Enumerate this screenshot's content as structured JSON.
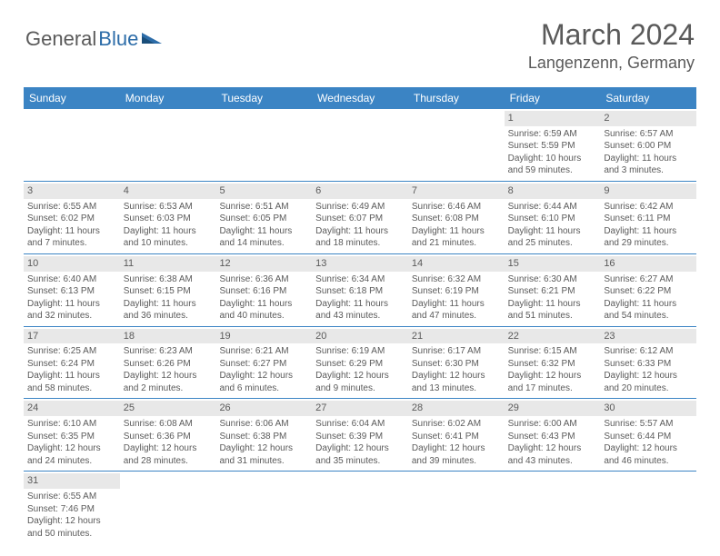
{
  "logo": {
    "text_gray": "General",
    "text_blue": "Blue"
  },
  "title": "March 2024",
  "location": "Langenzenn, Germany",
  "colors": {
    "header_bg": "#3b84c4",
    "header_text": "#ffffff",
    "daynum_bg": "#e8e8e8",
    "text": "#5a5a5a",
    "row_border": "#3b84c4"
  },
  "day_headers": [
    "Sunday",
    "Monday",
    "Tuesday",
    "Wednesday",
    "Thursday",
    "Friday",
    "Saturday"
  ],
  "weeks": [
    [
      null,
      null,
      null,
      null,
      null,
      {
        "n": "1",
        "sunrise": "Sunrise: 6:59 AM",
        "sunset": "Sunset: 5:59 PM",
        "day1": "Daylight: 10 hours",
        "day2": "and 59 minutes."
      },
      {
        "n": "2",
        "sunrise": "Sunrise: 6:57 AM",
        "sunset": "Sunset: 6:00 PM",
        "day1": "Daylight: 11 hours",
        "day2": "and 3 minutes."
      }
    ],
    [
      {
        "n": "3",
        "sunrise": "Sunrise: 6:55 AM",
        "sunset": "Sunset: 6:02 PM",
        "day1": "Daylight: 11 hours",
        "day2": "and 7 minutes."
      },
      {
        "n": "4",
        "sunrise": "Sunrise: 6:53 AM",
        "sunset": "Sunset: 6:03 PM",
        "day1": "Daylight: 11 hours",
        "day2": "and 10 minutes."
      },
      {
        "n": "5",
        "sunrise": "Sunrise: 6:51 AM",
        "sunset": "Sunset: 6:05 PM",
        "day1": "Daylight: 11 hours",
        "day2": "and 14 minutes."
      },
      {
        "n": "6",
        "sunrise": "Sunrise: 6:49 AM",
        "sunset": "Sunset: 6:07 PM",
        "day1": "Daylight: 11 hours",
        "day2": "and 18 minutes."
      },
      {
        "n": "7",
        "sunrise": "Sunrise: 6:46 AM",
        "sunset": "Sunset: 6:08 PM",
        "day1": "Daylight: 11 hours",
        "day2": "and 21 minutes."
      },
      {
        "n": "8",
        "sunrise": "Sunrise: 6:44 AM",
        "sunset": "Sunset: 6:10 PM",
        "day1": "Daylight: 11 hours",
        "day2": "and 25 minutes."
      },
      {
        "n": "9",
        "sunrise": "Sunrise: 6:42 AM",
        "sunset": "Sunset: 6:11 PM",
        "day1": "Daylight: 11 hours",
        "day2": "and 29 minutes."
      }
    ],
    [
      {
        "n": "10",
        "sunrise": "Sunrise: 6:40 AM",
        "sunset": "Sunset: 6:13 PM",
        "day1": "Daylight: 11 hours",
        "day2": "and 32 minutes."
      },
      {
        "n": "11",
        "sunrise": "Sunrise: 6:38 AM",
        "sunset": "Sunset: 6:15 PM",
        "day1": "Daylight: 11 hours",
        "day2": "and 36 minutes."
      },
      {
        "n": "12",
        "sunrise": "Sunrise: 6:36 AM",
        "sunset": "Sunset: 6:16 PM",
        "day1": "Daylight: 11 hours",
        "day2": "and 40 minutes."
      },
      {
        "n": "13",
        "sunrise": "Sunrise: 6:34 AM",
        "sunset": "Sunset: 6:18 PM",
        "day1": "Daylight: 11 hours",
        "day2": "and 43 minutes."
      },
      {
        "n": "14",
        "sunrise": "Sunrise: 6:32 AM",
        "sunset": "Sunset: 6:19 PM",
        "day1": "Daylight: 11 hours",
        "day2": "and 47 minutes."
      },
      {
        "n": "15",
        "sunrise": "Sunrise: 6:30 AM",
        "sunset": "Sunset: 6:21 PM",
        "day1": "Daylight: 11 hours",
        "day2": "and 51 minutes."
      },
      {
        "n": "16",
        "sunrise": "Sunrise: 6:27 AM",
        "sunset": "Sunset: 6:22 PM",
        "day1": "Daylight: 11 hours",
        "day2": "and 54 minutes."
      }
    ],
    [
      {
        "n": "17",
        "sunrise": "Sunrise: 6:25 AM",
        "sunset": "Sunset: 6:24 PM",
        "day1": "Daylight: 11 hours",
        "day2": "and 58 minutes."
      },
      {
        "n": "18",
        "sunrise": "Sunrise: 6:23 AM",
        "sunset": "Sunset: 6:26 PM",
        "day1": "Daylight: 12 hours",
        "day2": "and 2 minutes."
      },
      {
        "n": "19",
        "sunrise": "Sunrise: 6:21 AM",
        "sunset": "Sunset: 6:27 PM",
        "day1": "Daylight: 12 hours",
        "day2": "and 6 minutes."
      },
      {
        "n": "20",
        "sunrise": "Sunrise: 6:19 AM",
        "sunset": "Sunset: 6:29 PM",
        "day1": "Daylight: 12 hours",
        "day2": "and 9 minutes."
      },
      {
        "n": "21",
        "sunrise": "Sunrise: 6:17 AM",
        "sunset": "Sunset: 6:30 PM",
        "day1": "Daylight: 12 hours",
        "day2": "and 13 minutes."
      },
      {
        "n": "22",
        "sunrise": "Sunrise: 6:15 AM",
        "sunset": "Sunset: 6:32 PM",
        "day1": "Daylight: 12 hours",
        "day2": "and 17 minutes."
      },
      {
        "n": "23",
        "sunrise": "Sunrise: 6:12 AM",
        "sunset": "Sunset: 6:33 PM",
        "day1": "Daylight: 12 hours",
        "day2": "and 20 minutes."
      }
    ],
    [
      {
        "n": "24",
        "sunrise": "Sunrise: 6:10 AM",
        "sunset": "Sunset: 6:35 PM",
        "day1": "Daylight: 12 hours",
        "day2": "and 24 minutes."
      },
      {
        "n": "25",
        "sunrise": "Sunrise: 6:08 AM",
        "sunset": "Sunset: 6:36 PM",
        "day1": "Daylight: 12 hours",
        "day2": "and 28 minutes."
      },
      {
        "n": "26",
        "sunrise": "Sunrise: 6:06 AM",
        "sunset": "Sunset: 6:38 PM",
        "day1": "Daylight: 12 hours",
        "day2": "and 31 minutes."
      },
      {
        "n": "27",
        "sunrise": "Sunrise: 6:04 AM",
        "sunset": "Sunset: 6:39 PM",
        "day1": "Daylight: 12 hours",
        "day2": "and 35 minutes."
      },
      {
        "n": "28",
        "sunrise": "Sunrise: 6:02 AM",
        "sunset": "Sunset: 6:41 PM",
        "day1": "Daylight: 12 hours",
        "day2": "and 39 minutes."
      },
      {
        "n": "29",
        "sunrise": "Sunrise: 6:00 AM",
        "sunset": "Sunset: 6:43 PM",
        "day1": "Daylight: 12 hours",
        "day2": "and 43 minutes."
      },
      {
        "n": "30",
        "sunrise": "Sunrise: 5:57 AM",
        "sunset": "Sunset: 6:44 PM",
        "day1": "Daylight: 12 hours",
        "day2": "and 46 minutes."
      }
    ],
    [
      {
        "n": "31",
        "sunrise": "Sunrise: 6:55 AM",
        "sunset": "Sunset: 7:46 PM",
        "day1": "Daylight: 12 hours",
        "day2": "and 50 minutes."
      },
      null,
      null,
      null,
      null,
      null,
      null
    ]
  ]
}
